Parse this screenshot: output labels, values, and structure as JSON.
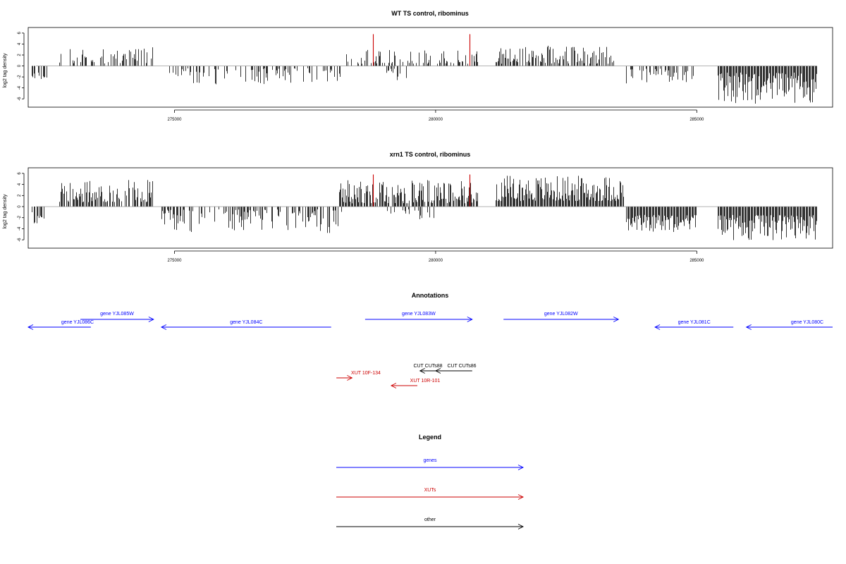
{
  "chart_data": [
    {
      "type": "bar",
      "title": "WT TS control, ribominus",
      "ylabel": "log2 tag density",
      "xlabel": "",
      "xlim": [
        272200,
        287600
      ],
      "ylim": [
        -7,
        6.5
      ],
      "xticks": [
        275000,
        280000,
        285000
      ],
      "yticks": [
        -6,
        -4,
        -2,
        0,
        2,
        4,
        6
      ],
      "grid": false,
      "baseline": 0,
      "bar_color": "#000000",
      "highlight_color": "#cc0000",
      "highlights": [
        {
          "x": 278800,
          "value": 5.8
        },
        {
          "x": 280650,
          "value": 5.8
        }
      ],
      "regions": [
        {
          "x": [
            272800,
            274600
          ],
          "sign": 1,
          "min": 0.4,
          "max": 3.4,
          "density": 0.45
        },
        {
          "x": [
            278150,
            280800
          ],
          "sign": 1,
          "min": 0.4,
          "max": 3.0,
          "density": 0.45
        },
        {
          "x": [
            281150,
            283400
          ],
          "sign": 1,
          "min": 0.4,
          "max": 3.8,
          "density": 0.6
        },
        {
          "x": [
            272250,
            272550
          ],
          "sign": -1,
          "min": 0.6,
          "max": 2.5,
          "density": 0.4
        },
        {
          "x": [
            274900,
            278200
          ],
          "sign": -1,
          "min": 0.4,
          "max": 3.5,
          "density": 0.45
        },
        {
          "x": [
            279050,
            279450
          ],
          "sign": -1,
          "min": 0.5,
          "max": 2.8,
          "density": 0.45
        },
        {
          "x": [
            283650,
            285000
          ],
          "sign": -1,
          "min": 0.5,
          "max": 3.2,
          "density": 0.5
        },
        {
          "x": [
            285400,
            287300
          ],
          "sign": -1,
          "min": 1.2,
          "max": 6.9,
          "density": 1.0
        }
      ]
    },
    {
      "type": "bar",
      "title": "xrn1 TS control, ribominus",
      "ylabel": "log2 tag density",
      "xlabel": "",
      "xlim": [
        272200,
        287600
      ],
      "ylim": [
        -7,
        6.5
      ],
      "xticks": [
        275000,
        280000,
        285000
      ],
      "yticks": [
        -6,
        -4,
        -2,
        0,
        2,
        4,
        6
      ],
      "grid": false,
      "baseline": 0,
      "bar_color": "#000000",
      "highlight_color": "#cc0000",
      "highlights": [
        {
          "x": 278800,
          "value": 5.8
        },
        {
          "x": 280650,
          "value": 5.8
        }
      ],
      "regions": [
        {
          "x": [
            272800,
            274600
          ],
          "sign": 1,
          "min": 0.8,
          "max": 4.8,
          "density": 0.8
        },
        {
          "x": [
            278150,
            280800
          ],
          "sign": 1,
          "min": 0.6,
          "max": 4.8,
          "density": 0.9
        },
        {
          "x": [
            281150,
            283600
          ],
          "sign": 1,
          "min": 1.0,
          "max": 5.6,
          "density": 1.0
        },
        {
          "x": [
            272250,
            272550
          ],
          "sign": -1,
          "min": 1.0,
          "max": 3.5,
          "density": 0.6
        },
        {
          "x": [
            274750,
            278200
          ],
          "sign": -1,
          "min": 0.5,
          "max": 4.8,
          "density": 0.6
        },
        {
          "x": [
            279000,
            280000
          ],
          "sign": -1,
          "min": 0.5,
          "max": 2.5,
          "density": 0.3
        },
        {
          "x": [
            283650,
            285000
          ],
          "sign": -1,
          "min": 1.5,
          "max": 4.6,
          "density": 1.0
        },
        {
          "x": [
            285400,
            287300
          ],
          "sign": -1,
          "min": 1.5,
          "max": 6.2,
          "density": 1.0
        }
      ]
    }
  ],
  "annotations": {
    "title": "Annotations",
    "features": [
      {
        "label": "gene YJL085W",
        "start": 273200,
        "end": 274600,
        "strand": "+",
        "kind": "gene",
        "color": "#0000ff",
        "row": 0
      },
      {
        "label": "gene YJL086C",
        "start": 272200,
        "end": 273400,
        "strand": "-",
        "kind": "gene",
        "color": "#0000ff",
        "row": 1
      },
      {
        "label": "gene YJL084C",
        "start": 274750,
        "end": 278000,
        "strand": "-",
        "kind": "gene",
        "color": "#0000ff",
        "row": 1
      },
      {
        "label": "gene YJL083W",
        "start": 278650,
        "end": 280700,
        "strand": "+",
        "kind": "gene",
        "color": "#0000ff",
        "row": 0
      },
      {
        "label": "gene YJL082W",
        "start": 281300,
        "end": 283500,
        "strand": "+",
        "kind": "gene",
        "color": "#0000ff",
        "row": 0
      },
      {
        "label": "gene YJL081C",
        "start": 284200,
        "end": 285700,
        "strand": "-",
        "kind": "gene",
        "color": "#0000ff",
        "row": 1
      },
      {
        "label": "gene YJL080C",
        "start": 285950,
        "end": 287600,
        "strand": "-",
        "kind": "gene",
        "color": "#0000ff",
        "row": 1
      },
      {
        "label": "CUT CUTs88",
        "start": 279700,
        "end": 280000,
        "strand": "-",
        "kind": "other",
        "color": "#000000",
        "row": 2
      },
      {
        "label": "CUT CUTs86",
        "start": 280000,
        "end": 280700,
        "strand": "-",
        "kind": "other",
        "color": "#000000",
        "row": 2
      },
      {
        "label": "XUT 10F-134",
        "start": 278100,
        "end": 278400,
        "strand": "+",
        "kind": "xut",
        "color": "#cc0000",
        "row": 3
      },
      {
        "label": "XUT 10R-101",
        "start": 279150,
        "end": 279650,
        "strand": "-",
        "kind": "xut",
        "color": "#cc0000",
        "row": 4
      }
    ]
  },
  "legend": {
    "title": "Legend",
    "items": [
      {
        "label": "genes",
        "color": "#0000ff"
      },
      {
        "label": "XUTs",
        "color": "#cc0000"
      },
      {
        "label": "other",
        "color": "#000000"
      }
    ]
  }
}
